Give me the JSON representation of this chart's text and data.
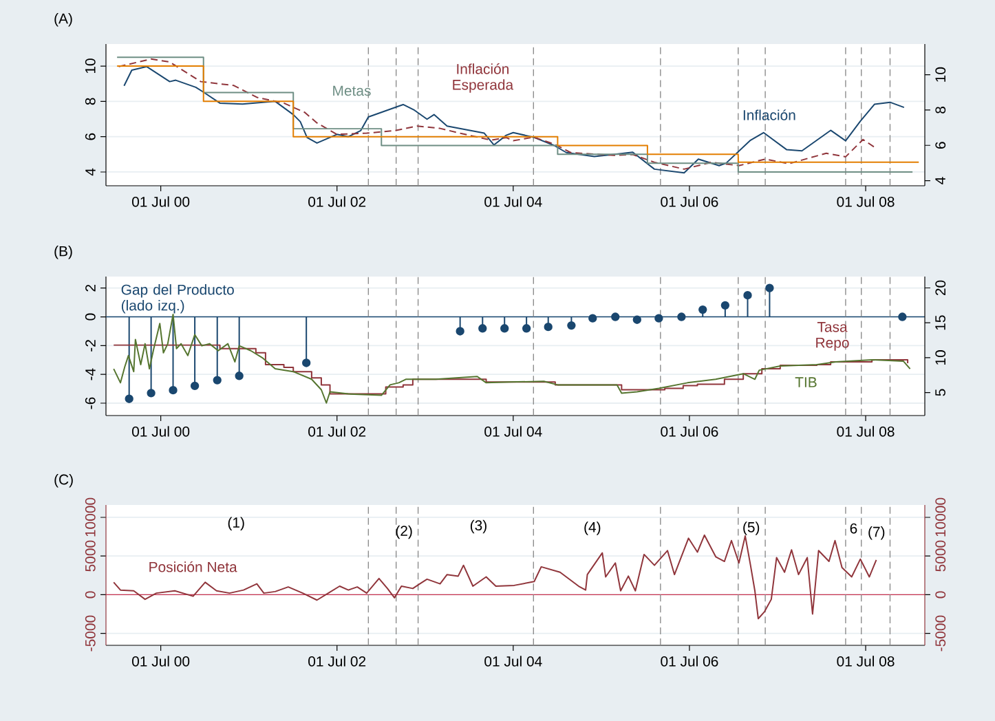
{
  "chart_data": [
    {
      "type": "line",
      "title": "(A)",
      "xlim": [
        "1999-11-16",
        "2009-03-03"
      ],
      "xticks": [
        {
          "value": "2000-07-01",
          "label": "01 Jul 00"
        },
        {
          "value": "2002-07-01",
          "label": "01 Jul 02"
        },
        {
          "value": "2004-07-01",
          "label": "01 Jul 04"
        },
        {
          "value": "2006-07-01",
          "label": "01 Jul 06"
        },
        {
          "value": "2008-07-01",
          "label": "01 Jul 08"
        }
      ],
      "ylim": [
        3.22,
        11.25
      ],
      "yticks": [
        4,
        6,
        8,
        10
      ],
      "y2lim": [
        3.71,
        11.74
      ],
      "y2ticks": [
        4,
        6,
        8,
        10
      ],
      "grid": "y",
      "series": [
        {
          "name": "Inflación",
          "color": "#1a476f",
          "x": [
            "2000-01-30",
            "2000-03-03",
            "2000-05-04",
            "2000-08-07",
            "2000-09-01",
            "2000-11-23",
            "2000-12-22",
            "2001-03-03",
            "2001-06-05",
            "2001-10-18",
            "2002-01-01",
            "2002-01-30",
            "2002-02-27",
            "2002-04-09",
            "2002-07-01",
            "2002-08-17",
            "2002-10-07",
            "2002-11-08",
            "2003-04-01",
            "2003-05-18",
            "2003-07-09",
            "2003-08-07",
            "2003-09-30",
            "2004-03-03",
            "2004-04-12",
            "2004-06-02",
            "2004-07-01",
            "2004-09-23",
            "2004-12-18",
            "2005-02-06",
            "2005-06-02",
            "2005-08-21",
            "2005-11-08",
            "2006-02-06",
            "2006-06-09",
            "2006-08-07",
            "2006-11-01",
            "2006-11-30",
            "2007-03-11",
            "2007-05-04",
            "2007-08-07",
            "2007-10-10",
            "2008-02-06",
            "2008-04-09",
            "2008-06-09",
            "2008-08-07",
            "2008-10-10",
            "2008-12-07"
          ],
          "values": [
            8.88,
            9.77,
            9.97,
            9.12,
            9.2,
            8.8,
            8.55,
            7.9,
            7.85,
            8.0,
            7.25,
            6.85,
            5.95,
            5.64,
            6.13,
            6.0,
            6.34,
            7.12,
            7.82,
            7.5,
            6.99,
            7.25,
            6.6,
            6.2,
            5.53,
            6.08,
            6.23,
            5.97,
            5.5,
            5.1,
            4.88,
            4.99,
            5.12,
            4.16,
            3.95,
            4.73,
            4.36,
            4.5,
            5.8,
            6.23,
            5.27,
            5.2,
            6.36,
            5.77,
            6.88,
            7.84,
            7.95,
            7.66
          ]
        },
        {
          "name": "Inflación Esperada",
          "color": "#90353b",
          "line_style": "dashed",
          "x": [
            "2000-01-08",
            "2000-05-22",
            "2000-08-07",
            "2000-12-14",
            "2001-04-30",
            "2001-08-03",
            "2001-11-23",
            "2002-02-17",
            "2002-04-09",
            "2002-07-01",
            "2002-11-01",
            "2003-02-24",
            "2003-05-29",
            "2003-09-01",
            "2003-12-04",
            "2004-04-01",
            "2004-06-02",
            "2004-07-01",
            "2004-09-23",
            "2004-12-18",
            "2005-02-24",
            "2005-08-21",
            "2005-11-08",
            "2006-02-06",
            "2006-06-09",
            "2006-09-30",
            "2007-01-22",
            "2007-05-11",
            "2007-08-17",
            "2008-01-19",
            "2008-04-09",
            "2008-06-20",
            "2008-08-07"
          ],
          "values": [
            9.97,
            10.4,
            10.23,
            9.12,
            8.9,
            8.23,
            7.9,
            7.38,
            6.78,
            6.13,
            6.2,
            6.34,
            6.6,
            6.47,
            6.16,
            5.8,
            5.95,
            5.77,
            5.97,
            5.58,
            5.1,
            4.94,
            4.99,
            4.55,
            4.16,
            4.55,
            4.36,
            4.73,
            4.47,
            5.06,
            4.86,
            5.84,
            5.4
          ]
        },
        {
          "name": "Metas",
          "color": "#6e8e84",
          "type": "step",
          "x": [
            "2000-01-01",
            "2000-12-25",
            "2002-01-01",
            "2003-01-01",
            "2005-01-01",
            "2006-01-08",
            "2007-01-19",
            "2009-01-11"
          ],
          "values": [
            10.5,
            8.5,
            6.45,
            5.5,
            5.0,
            4.5,
            4.0,
            4.0
          ]
        },
        {
          "color": "#e37e00",
          "type": "step",
          "x": [
            "2000-01-01",
            "2000-12-25",
            "2002-01-01",
            "2005-01-01",
            "2006-01-08",
            "2007-01-19",
            "2009-02-06"
          ],
          "values": [
            10.0,
            8.0,
            6.0,
            5.5,
            5.0,
            4.55,
            4.55
          ]
        }
      ],
      "ref_lines": [
        {
          "axis": "x",
          "value": "2002-11-08",
          "color": "#8c8c8c",
          "line_style": "dashed"
        },
        {
          "axis": "x",
          "value": "2003-03-03",
          "color": "#8c8c8c",
          "line_style": "dashed"
        },
        {
          "axis": "x",
          "value": "2003-06-02",
          "color": "#8c8c8c",
          "line_style": "dashed"
        },
        {
          "axis": "x",
          "value": "2004-09-23",
          "color": "#8c8c8c",
          "line_style": "dashed"
        },
        {
          "axis": "x",
          "value": "2006-03-03",
          "color": "#8c8c8c",
          "line_style": "dashed"
        },
        {
          "axis": "x",
          "value": "2007-01-19",
          "color": "#8c8c8c",
          "line_style": "dashed"
        },
        {
          "axis": "x",
          "value": "2007-05-11",
          "color": "#8c8c8c",
          "line_style": "dashed"
        },
        {
          "axis": "x",
          "value": "2008-04-09",
          "color": "#8c8c8c",
          "line_style": "dashed"
        },
        {
          "axis": "x",
          "value": "2008-06-13",
          "color": "#8c8c8c",
          "line_style": "dashed"
        },
        {
          "axis": "x",
          "value": "2008-10-10",
          "color": "#8c8c8c",
          "line_style": "dashed"
        }
      ]
    },
    {
      "type": "line",
      "title": "(B)",
      "xlim": [
        "1999-11-16",
        "2009-03-03"
      ],
      "xticks": [
        {
          "value": "2000-07-01",
          "label": "01 Jul 00"
        },
        {
          "value": "2002-07-01",
          "label": "01 Jul 02"
        },
        {
          "value": "2004-07-01",
          "label": "01 Jul 04"
        },
        {
          "value": "2006-07-01",
          "label": "01 Jul 06"
        },
        {
          "value": "2008-07-01",
          "label": "01 Jul 08"
        }
      ],
      "ylim": [
        -6.86,
        2.8
      ],
      "yticks": [
        -6,
        -4,
        -2,
        0,
        2
      ],
      "y2lim": [
        1.7,
        21.63
      ],
      "y2ticks": [
        5,
        10,
        15,
        20
      ],
      "grid": "y",
      "series": [
        {
          "name": "Gap del Producto (lado izq.)",
          "color": "#1a476f",
          "type": "lollipop",
          "marker": "circle",
          "x": [
            "2000-02-20",
            "2000-05-22",
            "2000-08-21",
            "2000-11-19",
            "2001-02-20",
            "2001-05-22",
            "2002-02-24",
            "2003-11-23",
            "2004-02-24",
            "2004-05-26",
            "2004-08-25",
            "2004-11-23",
            "2005-02-27",
            "2005-05-26",
            "2005-08-28",
            "2005-11-26",
            "2006-02-24",
            "2006-05-29",
            "2006-08-25",
            "2006-11-26",
            "2007-02-27",
            "2007-05-29",
            "2008-11-30"
          ],
          "values": [
            -5.7,
            -5.3,
            -5.1,
            -4.8,
            -4.4,
            -4.1,
            -3.2,
            -1.0,
            -0.8,
            -0.8,
            -0.8,
            -0.7,
            -0.6,
            -0.1,
            0.0,
            -0.2,
            -0.1,
            0.0,
            0.5,
            0.8,
            1.5,
            2.0,
            0.0
          ]
        },
        {
          "name": "Tasa Repo",
          "color": "#90353b",
          "axis": "y2",
          "type": "step",
          "x": [
            "1999-12-18",
            "2001-02-13",
            "2001-03-03",
            "2001-06-23",
            "2001-07-30",
            "2001-09-08",
            "2001-11-23",
            "2002-01-01",
            "2002-03-18",
            "2002-04-27",
            "2002-06-02",
            "2003-01-01",
            "2003-01-19",
            "2003-04-01",
            "2003-05-11",
            "2004-02-20",
            "2004-03-11",
            "2004-12-11",
            "2004-12-22",
            "2005-09-12",
            "2005-09-23",
            "2006-02-24",
            "2006-03-21",
            "2006-06-05",
            "2006-08-03",
            "2006-11-23",
            "2007-02-09",
            "2007-04-27",
            "2007-07-12",
            "2007-12-11",
            "2008-02-06",
            "2008-07-27",
            "2008-12-04",
            "2008-12-22"
          ],
          "values": [
            11.8,
            11.8,
            11.3,
            11.3,
            10.7,
            9.0,
            8.6,
            8.0,
            7.1,
            6.1,
            4.8,
            4.8,
            5.8,
            6.1,
            6.9,
            6.9,
            6.5,
            6.5,
            6.1,
            6.1,
            5.4,
            5.4,
            5.6,
            6.0,
            6.2,
            6.9,
            7.7,
            8.4,
            8.9,
            9.0,
            9.4,
            9.7,
            9.7,
            9.2
          ]
        },
        {
          "name": "TIB",
          "color": "#55752f",
          "axis": "y2",
          "x": [
            "1999-12-18",
            "2000-01-15",
            "2000-02-02",
            "2000-02-17",
            "2000-03-11",
            "2000-03-18",
            "2000-04-09",
            "2000-04-27",
            "2000-05-15",
            "2000-06-02",
            "2000-06-27",
            "2000-07-12",
            "2000-07-30",
            "2000-08-21",
            "2000-09-04",
            "2000-09-23",
            "2000-10-21",
            "2000-11-19",
            "2000-12-18",
            "2001-01-19",
            "2001-02-24",
            "2001-04-05",
            "2001-05-04",
            "2001-05-22",
            "2001-07-09",
            "2001-08-25",
            "2001-10-18",
            "2002-01-01",
            "2002-03-18",
            "2002-04-27",
            "2002-05-18",
            "2002-06-02",
            "2002-08-17",
            "2003-01-01",
            "2003-02-06",
            "2003-03-14",
            "2003-04-12",
            "2003-08-14",
            "2004-02-02",
            "2004-03-11",
            "2004-06-13",
            "2004-11-05",
            "2005-01-01",
            "2005-09-04",
            "2005-09-23",
            "2005-11-26",
            "2006-02-24",
            "2006-06-23",
            "2006-10-18",
            "2007-02-09",
            "2007-03-29",
            "2007-04-16",
            "2007-07-12",
            "2007-12-11",
            "2008-02-27",
            "2008-07-27",
            "2008-12-04",
            "2009-01-01"
          ],
          "values": [
            8.4,
            6.4,
            8.7,
            10.3,
            8.0,
            12.6,
            9.0,
            12.0,
            8.4,
            11.3,
            14.9,
            10.7,
            12.0,
            16.2,
            11.3,
            12.0,
            10.3,
            13.3,
            11.7,
            12.0,
            11.0,
            12.0,
            9.4,
            11.7,
            11.0,
            10.0,
            8.4,
            8.0,
            6.9,
            5.4,
            3.5,
            5.1,
            4.8,
            4.6,
            6.1,
            6.4,
            6.9,
            6.9,
            7.3,
            6.4,
            6.5,
            6.6,
            6.1,
            6.1,
            4.9,
            5.1,
            5.6,
            6.4,
            6.9,
            7.7,
            6.9,
            8.2,
            8.8,
            9.0,
            9.4,
            9.7,
            9.5,
            8.4
          ]
        }
      ],
      "ref_lines": [
        {
          "axis": "y",
          "value": 0,
          "color": "#1a476f",
          "line_style": "solid"
        },
        {
          "axis": "x",
          "value": "2002-11-08",
          "color": "#8c8c8c",
          "line_style": "dashed"
        },
        {
          "axis": "x",
          "value": "2003-03-03",
          "color": "#8c8c8c",
          "line_style": "dashed"
        },
        {
          "axis": "x",
          "value": "2003-06-02",
          "color": "#8c8c8c",
          "line_style": "dashed"
        },
        {
          "axis": "x",
          "value": "2004-09-23",
          "color": "#8c8c8c",
          "line_style": "dashed"
        },
        {
          "axis": "x",
          "value": "2006-03-03",
          "color": "#8c8c8c",
          "line_style": "dashed"
        },
        {
          "axis": "x",
          "value": "2007-01-19",
          "color": "#8c8c8c",
          "line_style": "dashed"
        },
        {
          "axis": "x",
          "value": "2007-05-11",
          "color": "#8c8c8c",
          "line_style": "dashed"
        },
        {
          "axis": "x",
          "value": "2008-04-09",
          "color": "#8c8c8c",
          "line_style": "dashed"
        },
        {
          "axis": "x",
          "value": "2008-06-13",
          "color": "#8c8c8c",
          "line_style": "dashed"
        },
        {
          "axis": "x",
          "value": "2008-10-10",
          "color": "#8c8c8c",
          "line_style": "dashed"
        }
      ]
    },
    {
      "type": "line",
      "title": "(C)",
      "xlim": [
        "1999-11-16",
        "2009-03-03"
      ],
      "xticks": [
        {
          "value": "2000-07-01",
          "label": "01 Jul 00"
        },
        {
          "value": "2002-07-01",
          "label": "01 Jul 02"
        },
        {
          "value": "2004-07-01",
          "label": "01 Jul 04"
        },
        {
          "value": "2006-07-01",
          "label": "01 Jul 06"
        },
        {
          "value": "2008-07-01",
          "label": "01 Jul 08"
        }
      ],
      "ylim": [
        -6550,
        11600
      ],
      "yticks": [
        -5000,
        0,
        5000,
        10000
      ],
      "y2lim": [
        -6550,
        11600
      ],
      "y2ticks": [
        -5000,
        0,
        5000,
        10000
      ],
      "grid": "y",
      "series": [
        {
          "name": "Posición Neta",
          "color": "#90353b",
          "x": [
            "1999-12-18",
            "2000-01-15",
            "2000-03-11",
            "2000-04-27",
            "2000-06-13",
            "2000-08-28",
            "2000-11-12",
            "2001-01-01",
            "2001-02-17",
            "2001-04-12",
            "2001-06-09",
            "2001-08-03",
            "2001-09-01",
            "2001-10-18",
            "2001-12-11",
            "2002-02-09",
            "2002-04-09",
            "2002-05-26",
            "2002-07-12",
            "2002-08-17",
            "2002-09-23",
            "2002-11-01",
            "2002-12-22",
            "2003-01-26",
            "2003-02-24",
            "2003-03-25",
            "2003-05-11",
            "2003-06-09",
            "2003-07-09",
            "2003-09-01",
            "2003-09-30",
            "2003-11-15",
            "2003-12-07",
            "2004-01-15",
            "2004-03-11",
            "2004-04-20",
            "2004-07-05",
            "2004-09-26",
            "2004-10-25",
            "2005-01-11",
            "2005-03-29",
            "2005-04-27",
            "2005-05-04",
            "2005-07-05",
            "2005-07-19",
            "2005-08-28",
            "2005-09-19",
            "2005-10-21",
            "2005-11-19",
            "2005-12-25",
            "2006-02-06",
            "2006-04-01",
            "2006-04-30",
            "2006-06-27",
            "2006-08-03",
            "2006-09-01",
            "2006-10-18",
            "2006-11-23",
            "2006-12-22",
            "2007-01-22",
            "2007-02-17",
            "2007-03-11",
            "2007-03-29",
            "2007-04-12",
            "2007-05-08",
            "2007-06-05",
            "2007-06-27",
            "2007-07-30",
            "2007-08-28",
            "2007-09-26",
            "2007-11-01",
            "2007-11-23",
            "2007-12-18",
            "2008-01-30",
            "2008-02-24",
            "2008-03-25",
            "2008-05-04",
            "2008-06-09",
            "2008-07-16",
            "2008-08-14"
          ],
          "values": [
            1600,
            600,
            500,
            -600,
            200,
            500,
            -200,
            1600,
            500,
            200,
            600,
            1400,
            200,
            400,
            1000,
            200,
            -700,
            200,
            1100,
            600,
            1000,
            200,
            2100,
            800,
            -400,
            1100,
            800,
            1400,
            2000,
            1400,
            2600,
            2400,
            3800,
            1100,
            2300,
            1100,
            1200,
            1700,
            3600,
            2900,
            1100,
            600,
            2600,
            5400,
            2300,
            4100,
            500,
            2400,
            500,
            5200,
            3800,
            5700,
            2600,
            7300,
            5500,
            7700,
            4900,
            4300,
            7000,
            4100,
            7600,
            3800,
            500,
            -3100,
            -2200,
            -600,
            4800,
            2900,
            5800,
            2600,
            4800,
            -2500,
            5700,
            4300,
            7000,
            3500,
            2300,
            4600,
            2300,
            4500
          ]
        }
      ],
      "annotations": [
        "(1)",
        "(2)",
        "(3)",
        "(4)",
        "(5)",
        "6",
        "(7)"
      ],
      "ref_lines": [
        {
          "axis": "y",
          "value": 0,
          "color": "#c8334f",
          "line_style": "solid"
        },
        {
          "axis": "x",
          "value": "2002-11-08",
          "color": "#8c8c8c",
          "line_style": "dashed"
        },
        {
          "axis": "x",
          "value": "2003-03-03",
          "color": "#8c8c8c",
          "line_style": "dashed"
        },
        {
          "axis": "x",
          "value": "2003-06-02",
          "color": "#8c8c8c",
          "line_style": "dashed"
        },
        {
          "axis": "x",
          "value": "2004-09-23",
          "color": "#8c8c8c",
          "line_style": "dashed"
        },
        {
          "axis": "x",
          "value": "2006-03-03",
          "color": "#8c8c8c",
          "line_style": "dashed"
        },
        {
          "axis": "x",
          "value": "2007-01-19",
          "color": "#8c8c8c",
          "line_style": "dashed"
        },
        {
          "axis": "x",
          "value": "2007-05-11",
          "color": "#8c8c8c",
          "line_style": "dashed"
        },
        {
          "axis": "x",
          "value": "2008-04-09",
          "color": "#8c8c8c",
          "line_style": "dashed"
        },
        {
          "axis": "x",
          "value": "2008-06-13",
          "color": "#8c8c8c",
          "line_style": "dashed"
        },
        {
          "axis": "x",
          "value": "2008-10-10",
          "color": "#8c8c8c",
          "line_style": "dashed"
        }
      ]
    }
  ]
}
